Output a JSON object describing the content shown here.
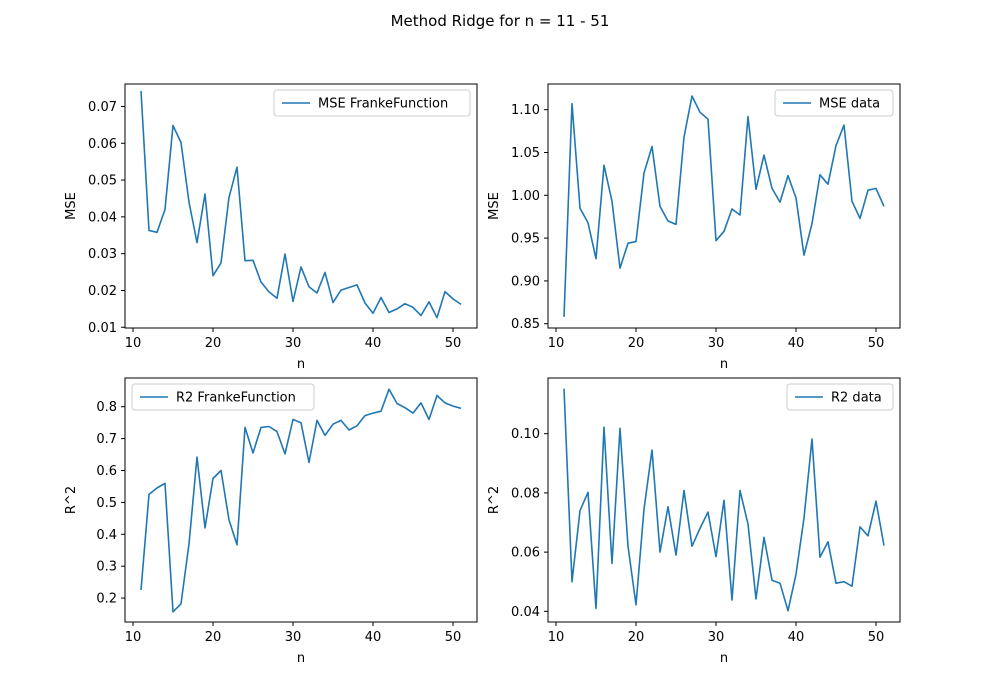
{
  "title": "Method Ridge for n = 11 - 51",
  "colors": {
    "line": "#1f77b4"
  },
  "chart_data": [
    {
      "type": "line",
      "title": "",
      "xlabel": "n",
      "ylabel": "MSE",
      "xlim": [
        9,
        53
      ],
      "ylim": [
        0.0098,
        0.0761
      ],
      "xticks": [
        10,
        20,
        30,
        40,
        50
      ],
      "xtick_labels": [
        "10",
        "20",
        "30",
        "40",
        "50"
      ],
      "yticks": [
        0.01,
        0.02,
        0.03,
        0.04,
        0.05,
        0.06,
        0.07
      ],
      "ytick_labels": [
        "0.01",
        "0.02",
        "0.03",
        "0.04",
        "0.05",
        "0.06",
        "0.07"
      ],
      "legend_position": "upper right",
      "grid": false,
      "series": [
        {
          "name": "MSE FrankeFunction",
          "x": [
            11,
            12,
            13,
            14,
            15,
            16,
            17,
            18,
            19,
            20,
            21,
            22,
            23,
            24,
            25,
            26,
            27,
            28,
            29,
            30,
            31,
            32,
            33,
            34,
            35,
            36,
            37,
            38,
            39,
            40,
            41,
            42,
            43,
            44,
            45,
            46,
            47,
            48,
            49,
            50,
            51
          ],
          "y": [
            0.0742,
            0.0363,
            0.0358,
            0.042,
            0.0648,
            0.0602,
            0.044,
            0.033,
            0.0462,
            0.024,
            0.0275,
            0.0453,
            0.0535,
            0.0281,
            0.0282,
            0.0223,
            0.0196,
            0.0179,
            0.0299,
            0.017,
            0.0264,
            0.021,
            0.0193,
            0.0249,
            0.0167,
            0.0201,
            0.0208,
            0.0215,
            0.0166,
            0.0138,
            0.0181,
            0.014,
            0.015,
            0.0164,
            0.0154,
            0.0132,
            0.0169,
            0.0126,
            0.0197,
            0.0177,
            0.0162
          ]
        }
      ]
    },
    {
      "type": "line",
      "title": "",
      "xlabel": "n",
      "ylabel": "MSE",
      "xlim": [
        9,
        53
      ],
      "ylim": [
        0.845,
        1.13
      ],
      "xticks": [
        10,
        20,
        30,
        40,
        50
      ],
      "xtick_labels": [
        "10",
        "20",
        "30",
        "40",
        "50"
      ],
      "yticks": [
        0.85,
        0.9,
        0.95,
        1.0,
        1.05,
        1.1
      ],
      "ytick_labels": [
        "0.85",
        "0.90",
        "0.95",
        "1.00",
        "1.05",
        "1.10"
      ],
      "legend_position": "upper right",
      "grid": false,
      "series": [
        {
          "name": "MSE data",
          "x": [
            11,
            12,
            13,
            14,
            15,
            16,
            17,
            18,
            19,
            20,
            21,
            22,
            23,
            24,
            25,
            26,
            27,
            28,
            29,
            30,
            31,
            32,
            33,
            34,
            35,
            36,
            37,
            38,
            39,
            40,
            41,
            42,
            43,
            44,
            45,
            46,
            47,
            48,
            49,
            50,
            51
          ],
          "y": [
            0.858,
            1.107,
            0.985,
            0.968,
            0.926,
            1.035,
            0.993,
            0.915,
            0.944,
            0.946,
            1.026,
            1.057,
            0.987,
            0.97,
            0.966,
            1.068,
            1.116,
            1.097,
            1.089,
            0.947,
            0.958,
            0.984,
            0.977,
            1.092,
            1.007,
            1.047,
            1.008,
            0.992,
            1.023,
            0.997,
            0.93,
            0.967,
            1.024,
            1.013,
            1.058,
            1.082,
            0.993,
            0.973,
            1.006,
            1.008,
            0.987
          ]
        }
      ]
    },
    {
      "type": "line",
      "title": "",
      "xlabel": "n",
      "ylabel": "R^2",
      "xlim": [
        9,
        53
      ],
      "ylim": [
        0.125,
        0.89
      ],
      "xticks": [
        10,
        20,
        30,
        40,
        50
      ],
      "xtick_labels": [
        "10",
        "20",
        "30",
        "40",
        "50"
      ],
      "yticks": [
        0.2,
        0.3,
        0.4,
        0.5,
        0.6,
        0.7,
        0.8
      ],
      "ytick_labels": [
        "0.2",
        "0.3",
        "0.4",
        "0.5",
        "0.6",
        "0.7",
        "0.8"
      ],
      "legend_position": "upper left",
      "grid": false,
      "series": [
        {
          "name": "R2 FrankeFunction",
          "x": [
            11,
            12,
            13,
            14,
            15,
            16,
            17,
            18,
            19,
            20,
            21,
            22,
            23,
            24,
            25,
            26,
            27,
            28,
            29,
            30,
            31,
            32,
            33,
            34,
            35,
            36,
            37,
            38,
            39,
            40,
            41,
            42,
            43,
            44,
            45,
            46,
            47,
            48,
            49,
            50,
            51
          ],
          "y": [
            0.225,
            0.525,
            0.545,
            0.56,
            0.157,
            0.182,
            0.37,
            0.642,
            0.42,
            0.575,
            0.6,
            0.445,
            0.367,
            0.735,
            0.655,
            0.735,
            0.738,
            0.722,
            0.652,
            0.76,
            0.75,
            0.625,
            0.757,
            0.71,
            0.745,
            0.757,
            0.727,
            0.74,
            0.772,
            0.78,
            0.786,
            0.855,
            0.81,
            0.797,
            0.78,
            0.812,
            0.76,
            0.835,
            0.812,
            0.802,
            0.795
          ]
        }
      ]
    },
    {
      "type": "line",
      "title": "",
      "xlabel": "n",
      "ylabel": "R^2",
      "xlim": [
        9,
        53
      ],
      "ylim": [
        0.0364,
        0.1188
      ],
      "xticks": [
        10,
        20,
        30,
        40,
        50
      ],
      "xtick_labels": [
        "10",
        "20",
        "30",
        "40",
        "50"
      ],
      "yticks": [
        0.04,
        0.06,
        0.08,
        0.1
      ],
      "ytick_labels": [
        "0.04",
        "0.06",
        "0.08",
        "0.10"
      ],
      "legend_position": "upper right",
      "grid": false,
      "series": [
        {
          "name": "R2 data",
          "x": [
            11,
            12,
            13,
            14,
            15,
            16,
            17,
            18,
            19,
            20,
            21,
            22,
            23,
            24,
            25,
            26,
            27,
            28,
            29,
            30,
            31,
            32,
            33,
            34,
            35,
            36,
            37,
            38,
            39,
            40,
            41,
            42,
            43,
            44,
            45,
            46,
            47,
            48,
            49,
            50,
            51
          ],
          "y": [
            0.1152,
            0.05,
            0.074,
            0.0802,
            0.041,
            0.1022,
            0.0562,
            0.1018,
            0.062,
            0.0422,
            0.0745,
            0.0945,
            0.06,
            0.0753,
            0.059,
            0.0808,
            0.062,
            0.068,
            0.0735,
            0.0585,
            0.0775,
            0.0438,
            0.0808,
            0.0695,
            0.0442,
            0.065,
            0.0505,
            0.0495,
            0.0402,
            0.0525,
            0.0715,
            0.0982,
            0.0583,
            0.0635,
            0.0495,
            0.05,
            0.0485,
            0.0685,
            0.0655,
            0.0772,
            0.0622
          ]
        }
      ]
    }
  ]
}
